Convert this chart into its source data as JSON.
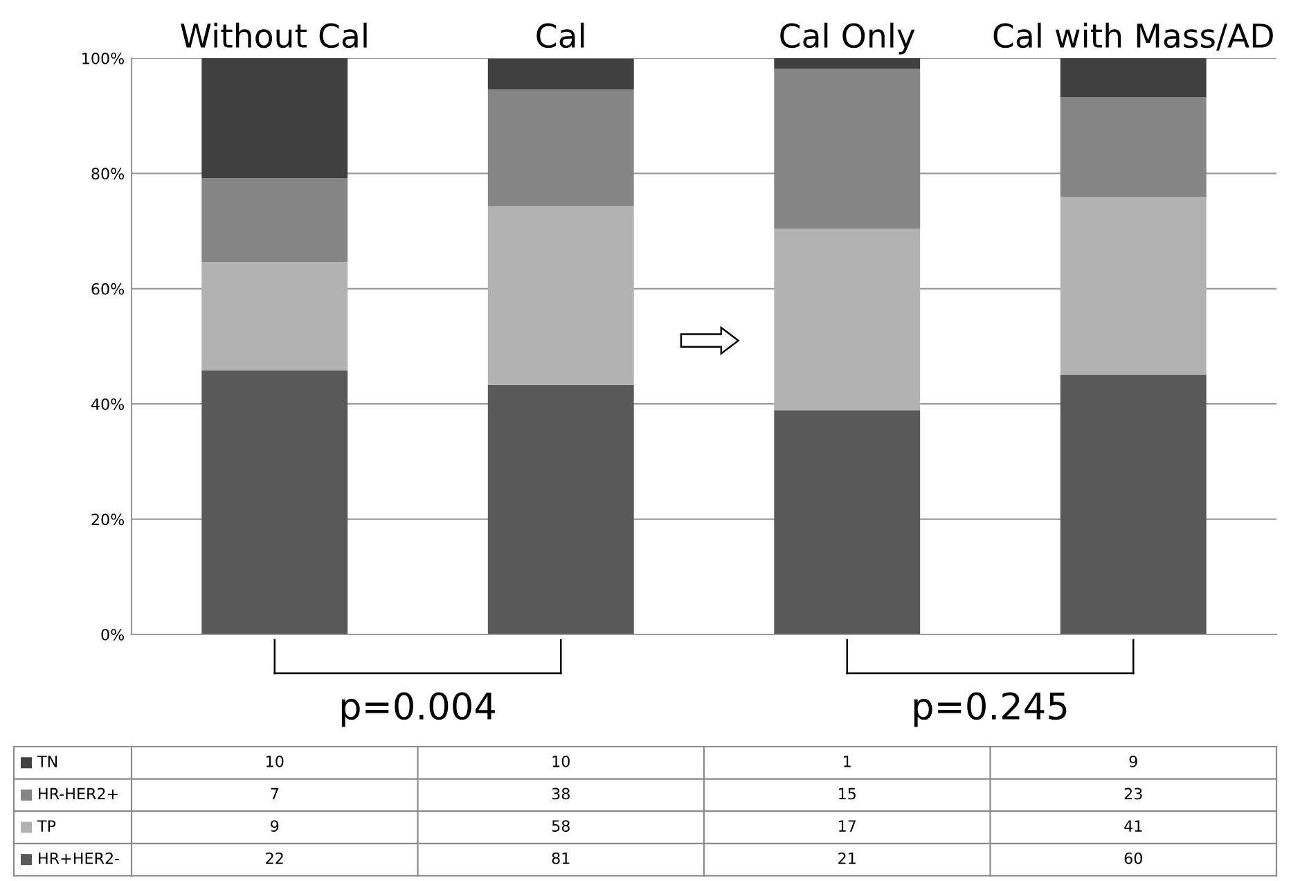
{
  "chart_data": {
    "type": "bar",
    "stacked": true,
    "categories": [
      "Without Cal",
      "Cal",
      "Cal Only",
      "Cal with Mass/AD"
    ],
    "series": [
      {
        "name": "HR+HER2-",
        "color": "#595959",
        "values": [
          45.8,
          43.3,
          38.9,
          45.1
        ]
      },
      {
        "name": "TP",
        "color": "#b2b2b2",
        "values": [
          18.8,
          31.0,
          31.5,
          30.8
        ]
      },
      {
        "name": "HR-HER2+",
        "color": "#858585",
        "values": [
          14.6,
          20.3,
          27.8,
          17.3
        ]
      },
      {
        "name": "TN",
        "color": "#404040",
        "values": [
          20.8,
          5.3,
          1.8,
          6.8
        ]
      }
    ],
    "ylim": [
      0,
      100
    ],
    "yticks": [
      {
        "value": 0,
        "label": "0%"
      },
      {
        "value": 20,
        "label": "20%"
      },
      {
        "value": 40,
        "label": "40%"
      },
      {
        "value": 60,
        "label": "60%"
      },
      {
        "value": 80,
        "label": "80%"
      },
      {
        "value": 100,
        "label": "100%"
      }
    ],
    "grid": "y",
    "legend": "bottom",
    "annotations": [
      "p=0.004",
      "p=0.245",
      "10",
      "10",
      "1",
      "9",
      "7",
      "38",
      "15",
      "23",
      "9",
      "58",
      "17",
      "41",
      "22",
      "81",
      "21",
      "60"
    ]
  }
}
